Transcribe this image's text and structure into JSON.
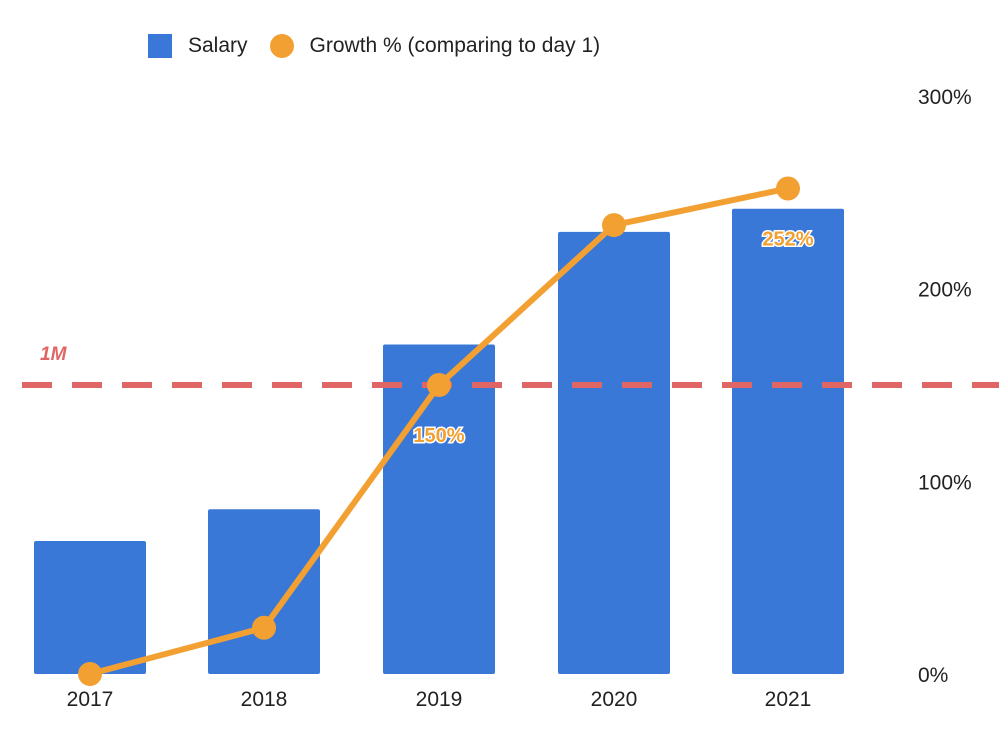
{
  "chart_data": {
    "type": "bar",
    "categories": [
      "2017",
      "2018",
      "2019",
      "2020",
      "2021"
    ],
    "series": [
      {
        "name": "Salary",
        "type": "bar",
        "axis": "left",
        "values": [
          0.46,
          0.57,
          1.14,
          1.53,
          1.61
        ]
      },
      {
        "name": "Growth % (comparing to day 1)",
        "type": "line",
        "axis": "right",
        "values": [
          0,
          24,
          150,
          233,
          252
        ]
      }
    ],
    "data_labels": [
      {
        "series": "Growth % (comparing to day 1)",
        "category": "2019",
        "text": "150%"
      },
      {
        "series": "Growth % (comparing to day 1)",
        "category": "2021",
        "text": "252%"
      }
    ],
    "reference_line": {
      "value": 1,
      "axis": "left",
      "label": "1M",
      "style": "dashed",
      "color": "#e06666"
    },
    "right_axis": {
      "ylim": [
        0,
        300
      ],
      "ticks": [
        "0%",
        "100%",
        "200%",
        "300%"
      ]
    },
    "left_axis": {
      "ylim": [
        0,
        2
      ],
      "visible": false
    },
    "legend": {
      "placement": "top-left"
    },
    "grid": false,
    "colors": {
      "bar": "#3a78d8",
      "line": "#f3a032",
      "reference": "#e06666"
    }
  }
}
